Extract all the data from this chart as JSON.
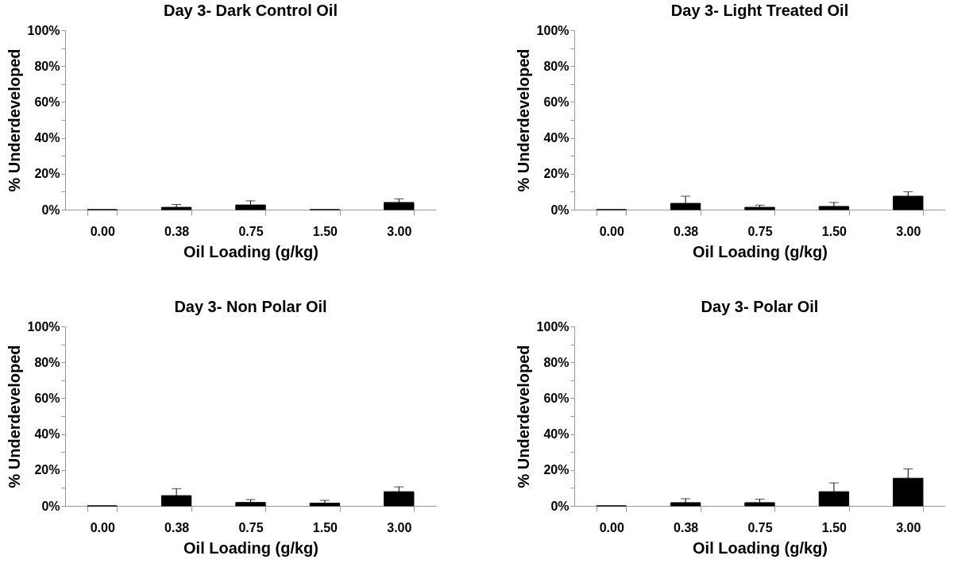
{
  "chart_data": [
    {
      "type": "bar",
      "title": "Day 3-  Dark Control Oil",
      "xlabel": "Oil Loading (g/kg)",
      "ylabel": "% Underdeveloped",
      "categories": [
        "0.00",
        "0.38",
        "0.75",
        "1.50",
        "3.00"
      ],
      "color": "#000000",
      "values": [
        0,
        1.3,
        2.6,
        0,
        4.0
      ],
      "errors": [
        null,
        [
          1.3,
          2.9
        ],
        [
          2.6,
          4.9
        ],
        null,
        [
          4.0,
          6.0
        ]
      ],
      "ylim": [
        0,
        100
      ],
      "yticks": [
        {
          "value": 0,
          "label": "0%"
        },
        {
          "value": 10,
          "label": null
        },
        {
          "value": 20,
          "label": "20%"
        },
        {
          "value": 30,
          "label": null
        },
        {
          "value": 40,
          "label": "40%"
        },
        {
          "value": 50,
          "label": null
        },
        {
          "value": 60,
          "label": "60%"
        },
        {
          "value": 70,
          "label": null
        },
        {
          "value": 80,
          "label": "80%"
        },
        {
          "value": 90,
          "label": null
        },
        {
          "value": 100,
          "label": "100%"
        }
      ],
      "grid": false
    },
    {
      "type": "bar",
      "title": "Day 3-  Light Treated Oil",
      "xlabel": "Oil Loading (g/kg)",
      "ylabel": "% Underdeveloped",
      "categories": [
        "0.00",
        "0.38",
        "0.75",
        "1.50",
        "3.00"
      ],
      "color": "#000000",
      "values": [
        0,
        3.5,
        1.3,
        1.8,
        7.5
      ],
      "errors": [
        null,
        [
          3.5,
          7.5
        ],
        [
          1.3,
          2.5
        ],
        [
          1.8,
          4.0
        ],
        [
          7.5,
          10.0
        ]
      ],
      "ylim": [
        0,
        100
      ],
      "yticks": [
        {
          "value": 0,
          "label": "0%"
        },
        {
          "value": 10,
          "label": null
        },
        {
          "value": 20,
          "label": "20%"
        },
        {
          "value": 30,
          "label": null
        },
        {
          "value": 40,
          "label": "40%"
        },
        {
          "value": 50,
          "label": null
        },
        {
          "value": 60,
          "label": "60%"
        },
        {
          "value": 70,
          "label": null
        },
        {
          "value": 80,
          "label": "80%"
        },
        {
          "value": 90,
          "label": null
        },
        {
          "value": 100,
          "label": "100%"
        }
      ],
      "grid": false
    },
    {
      "type": "bar",
      "title": "Day 3-  Non Polar Oil",
      "xlabel": "Oil Loading (g/kg)",
      "ylabel": "% Underdeveloped",
      "categories": [
        "0.00",
        "0.38",
        "0.75",
        "1.50",
        "3.00"
      ],
      "color": "#000000",
      "values": [
        0,
        5.7,
        1.9,
        1.5,
        7.9
      ],
      "errors": [
        null,
        [
          5.7,
          9.6
        ],
        [
          1.9,
          3.5
        ],
        [
          1.5,
          3.1
        ],
        [
          7.9,
          10.6
        ]
      ],
      "ylim": [
        0,
        100
      ],
      "yticks": [
        {
          "value": 0,
          "label": "0%"
        },
        {
          "value": 10,
          "label": null
        },
        {
          "value": 20,
          "label": "20%"
        },
        {
          "value": 30,
          "label": null
        },
        {
          "value": 40,
          "label": "40%"
        },
        {
          "value": 50,
          "label": null
        },
        {
          "value": 60,
          "label": "60%"
        },
        {
          "value": 70,
          "label": null
        },
        {
          "value": 80,
          "label": "80%"
        },
        {
          "value": 90,
          "label": null
        },
        {
          "value": 100,
          "label": "100%"
        }
      ],
      "grid": false
    },
    {
      "type": "bar",
      "title": "Day 3-  Polar Oil",
      "xlabel": "Oil Loading (g/kg)",
      "ylabel": "% Underdeveloped",
      "categories": [
        "0.00",
        "0.38",
        "0.75",
        "1.50",
        "3.00"
      ],
      "color": "#000000",
      "values": [
        0,
        1.8,
        1.8,
        7.9,
        15.4
      ],
      "errors": [
        null,
        [
          1.8,
          4.0
        ],
        [
          1.8,
          3.7
        ],
        [
          7.9,
          12.8
        ],
        [
          15.4,
          20.6
        ]
      ],
      "ylim": [
        0,
        100
      ],
      "yticks": [
        {
          "value": 0,
          "label": "0%"
        },
        {
          "value": 10,
          "label": null
        },
        {
          "value": 20,
          "label": "20%"
        },
        {
          "value": 30,
          "label": null
        },
        {
          "value": 40,
          "label": "40%"
        },
        {
          "value": 50,
          "label": null
        },
        {
          "value": 60,
          "label": "60%"
        },
        {
          "value": 70,
          "label": null
        },
        {
          "value": 80,
          "label": "80%"
        },
        {
          "value": 90,
          "label": null
        },
        {
          "value": 100,
          "label": "100%"
        }
      ],
      "grid": false
    }
  ]
}
